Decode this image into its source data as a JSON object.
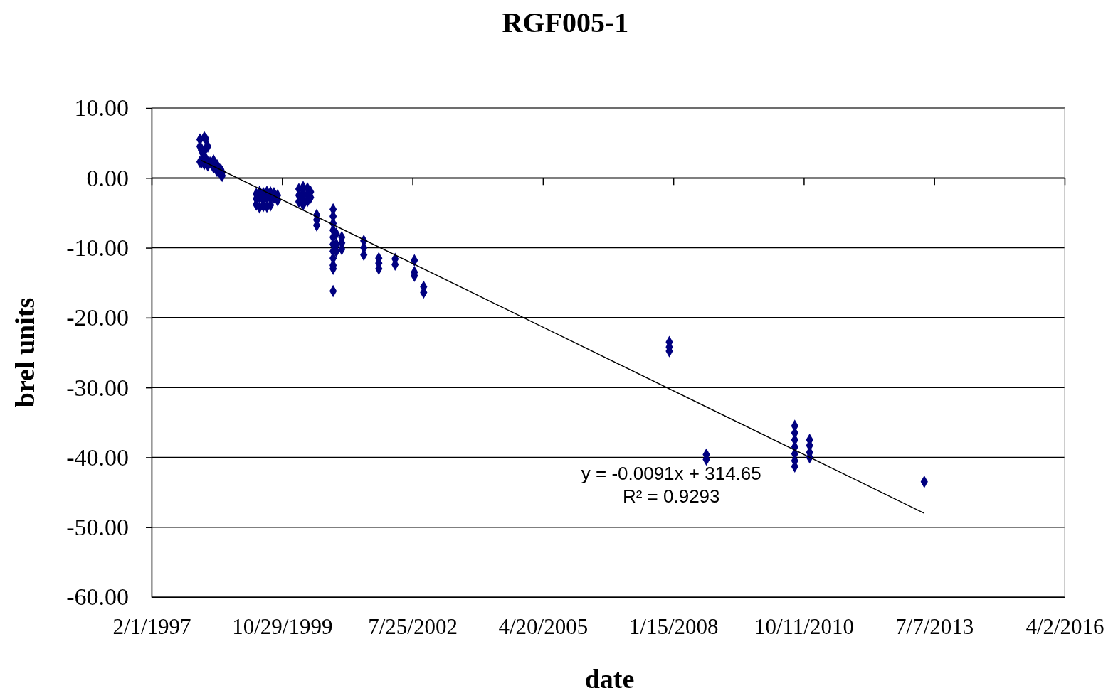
{
  "chart_data": {
    "type": "scatter",
    "title": "RGF005-1",
    "xlabel": "date",
    "ylabel": "brel units",
    "xlim": [
      "1997-02-01",
      "2016-04-02"
    ],
    "xticks": [
      {
        "value": "1997-02-01",
        "label": "2/1/1997"
      },
      {
        "value": "1999-10-29",
        "label": "10/29/1999"
      },
      {
        "value": "2002-07-25",
        "label": "7/25/2002"
      },
      {
        "value": "2005-04-20",
        "label": "4/20/2005"
      },
      {
        "value": "2008-01-15",
        "label": "1/15/2008"
      },
      {
        "value": "2010-10-11",
        "label": "10/11/2010"
      },
      {
        "value": "2013-07-07",
        "label": "7/7/2013"
      },
      {
        "value": "2016-04-02",
        "label": "4/2/2016"
      }
    ],
    "ylim": [
      -60,
      10
    ],
    "yticks": [
      {
        "value": 10,
        "label": "10.00"
      },
      {
        "value": 0,
        "label": "0.00"
      },
      {
        "value": -10,
        "label": "-10.00"
      },
      {
        "value": -20,
        "label": "-20.00"
      },
      {
        "value": -30,
        "label": "-30.00"
      },
      {
        "value": -40,
        "label": "-40.00"
      },
      {
        "value": -50,
        "label": "-50.00"
      },
      {
        "value": -60,
        "label": "-60.00"
      }
    ],
    "grid": "y",
    "marker": "diamond",
    "annotations": [
      "y = -0.0091x + 314.65",
      "R² = 0.9293"
    ],
    "series": [
      {
        "color": "#000080",
        "x": [
          "1998-02-07",
          "1998-02-07",
          "1998-02-07",
          "1998-02-18",
          "1998-02-18",
          "1998-03-01",
          "1998-03-12",
          "1998-03-12",
          "1998-03-23",
          "1998-03-23",
          "1998-03-23",
          "1998-04-08",
          "1998-04-08",
          "1998-04-25",
          "1998-05-22",
          "1998-05-22",
          "1998-06-18",
          "1998-06-18",
          "1998-07-16",
          "1998-07-16",
          "1998-07-27",
          "1998-07-27",
          "1999-04-15",
          "1999-04-15",
          "1999-04-15",
          "1999-05-10",
          "1999-05-10",
          "1999-05-10",
          "1999-06-08",
          "1999-06-08",
          "1999-06-08",
          "1999-07-05",
          "1999-07-05",
          "1999-07-05",
          "1999-08-02",
          "1999-08-02",
          "1999-08-02",
          "1999-08-28",
          "1999-08-28",
          "1999-09-25",
          "1999-09-25",
          "2000-03-06",
          "2000-03-06",
          "2000-03-06",
          "2000-04-08",
          "2000-04-08",
          "2000-04-08",
          "2000-04-08",
          "2000-05-11",
          "2000-05-11",
          "2000-05-11",
          "2000-06-04",
          "2000-06-04",
          "2000-07-21",
          "2000-07-21",
          "2000-07-21",
          "2000-11-24",
          "2000-11-24",
          "2000-11-24",
          "2000-11-24",
          "2000-11-24",
          "2000-11-24",
          "2000-11-24",
          "2000-11-24",
          "2000-11-24",
          "2000-11-24",
          "2000-11-24",
          "2000-12-18",
          "2000-12-18",
          "2000-12-18",
          "2001-01-29",
          "2001-01-29",
          "2001-01-29",
          "2001-07-17",
          "2001-07-17",
          "2001-07-17",
          "2001-11-09",
          "2001-11-09",
          "2001-11-09",
          "2002-03-14",
          "2002-03-14",
          "2002-08-09",
          "2002-08-09",
          "2002-08-09",
          "2002-10-19",
          "2002-10-19",
          "2007-12-15",
          "2007-12-15",
          "2007-12-15",
          "2008-09-24",
          "2008-09-24",
          "2010-08-03",
          "2010-08-03",
          "2010-08-03",
          "2010-08-03",
          "2010-08-03",
          "2010-08-03",
          "2010-08-03",
          "2010-11-25",
          "2010-11-25",
          "2010-11-25",
          "2010-11-25",
          "2013-04-22"
        ],
        "values": [
          5.5,
          4.5,
          2.3,
          4.0,
          2.2,
          3.5,
          5.8,
          2.0,
          5.6,
          4.2,
          2.8,
          4.5,
          1.8,
          2.2,
          2.5,
          1.5,
          1.8,
          1.0,
          1.2,
          0.5,
          0.8,
          0.3,
          -2.3,
          -3.0,
          -3.8,
          -2.0,
          -2.8,
          -4.2,
          -2.2,
          -3.2,
          -4.0,
          -2.0,
          -2.7,
          -4.1,
          -2.1,
          -3.0,
          -3.9,
          -2.2,
          -2.8,
          -2.5,
          -3.2,
          -1.6,
          -2.5,
          -3.4,
          -1.3,
          -2.2,
          -3.0,
          -3.8,
          -1.5,
          -2.4,
          -3.3,
          -2.0,
          -2.8,
          -5.3,
          -6.0,
          -6.8,
          -4.5,
          -5.5,
          -6.5,
          -7.5,
          -8.5,
          -9.5,
          -10.5,
          -11.5,
          -12.5,
          -13.0,
          -16.2,
          -8.0,
          -9.5,
          -10.5,
          -8.5,
          -9.3,
          -10.2,
          -9.0,
          -10.0,
          -11.0,
          -11.5,
          -12.2,
          -13.0,
          -11.6,
          -12.4,
          -11.8,
          -13.5,
          -14.0,
          -15.6,
          -16.4,
          -23.5,
          -24.2,
          -24.8,
          -39.6,
          -40.3,
          -35.5,
          -36.5,
          -37.5,
          -38.5,
          -39.5,
          -40.5,
          -41.3,
          -37.5,
          -38.3,
          -39.3,
          -40.0,
          -43.5
        ]
      },
      {
        "type": "line",
        "color": "#000000",
        "marker": "none",
        "x": [
          "1998-02-18",
          "2013-04-22"
        ],
        "values": [
          2.5,
          -48.0
        ]
      }
    ]
  }
}
